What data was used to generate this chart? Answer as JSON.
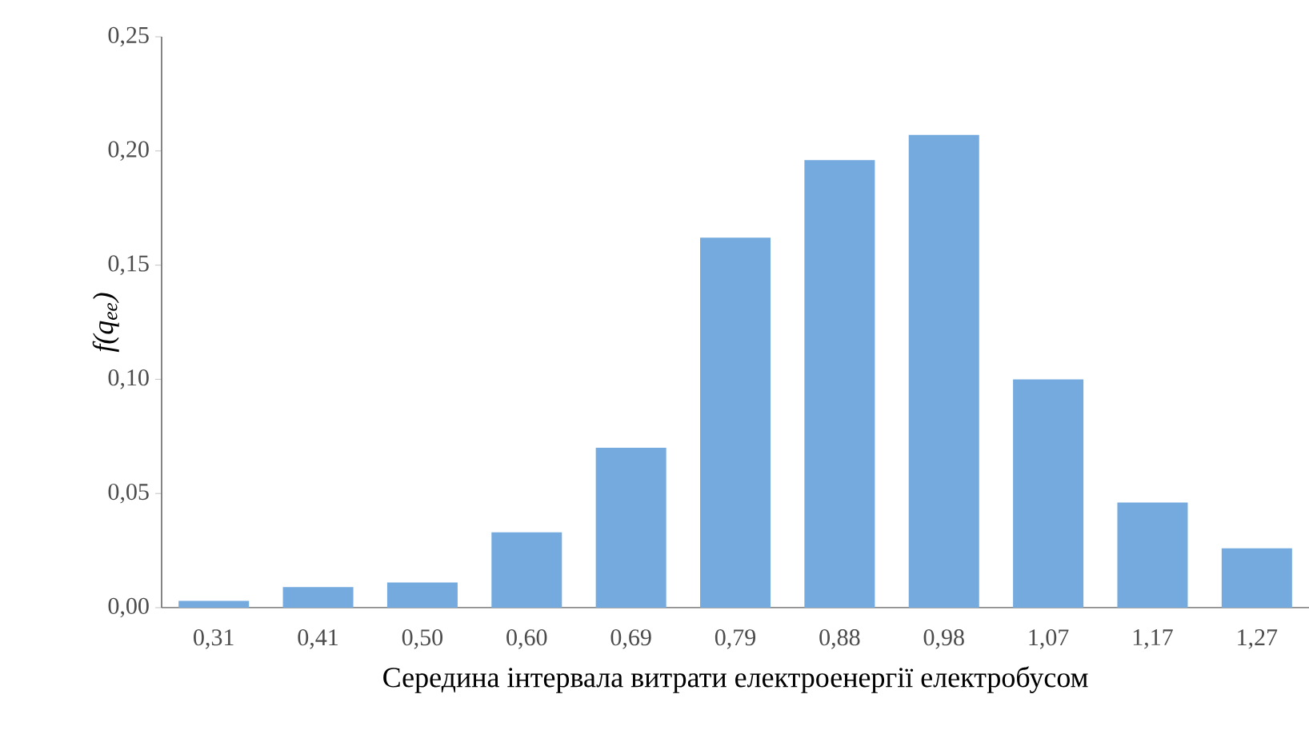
{
  "chart_data": {
    "type": "bar",
    "xlabel": "Середина інтервала витрати електроенергії електробусом",
    "ylabel": "f(q$_{ee}$)",
    "categories": [
      "0,31",
      "0,41",
      "0,50",
      "0,60",
      "0,69",
      "0,79",
      "0,88",
      "0,98",
      "1,07",
      "1,17",
      "1,27"
    ],
    "values": [
      0.003,
      0.009,
      0.011,
      0.033,
      0.07,
      0.162,
      0.196,
      0.207,
      0.1,
      0.046,
      0.026
    ],
    "color": "#74aade",
    "ylim": [
      0,
      0.25
    ],
    "yticks": [
      {
        "value": 0,
        "label": "0,00"
      },
      {
        "value": 0.05,
        "label": "0,05"
      },
      {
        "value": 0.1,
        "label": "0,10"
      },
      {
        "value": 0.15,
        "label": "0,15"
      },
      {
        "value": 0.2,
        "label": "0,20"
      },
      {
        "value": 0.25,
        "label": "0,25"
      }
    ],
    "grid": false
  }
}
